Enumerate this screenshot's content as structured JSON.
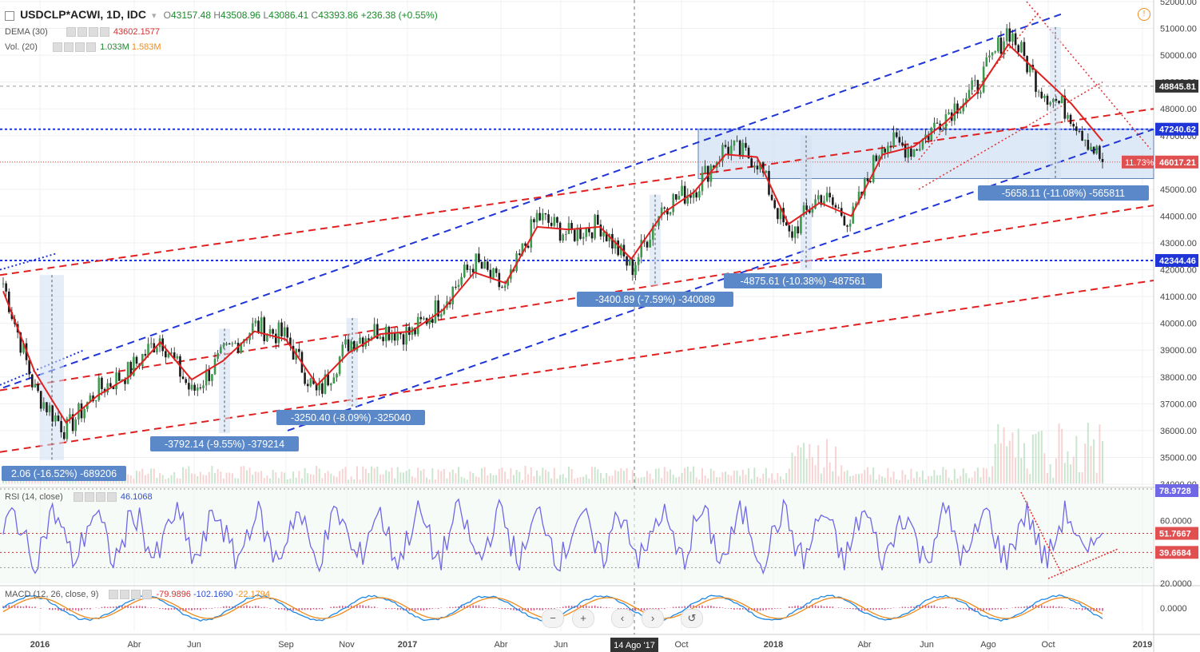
{
  "header": {
    "symbol": "USDCLP*ACWI, 1D, IDC",
    "ohlc": [
      {
        "k": "O",
        "v": "43157.48"
      },
      {
        "k": "H",
        "v": "43508.96"
      },
      {
        "k": "L",
        "v": "43086.41"
      },
      {
        "k": "C",
        "v": "43393.86"
      }
    ],
    "change": "+236.38 (+0.55%)",
    "dema_label": "DEMA (30)",
    "dema_value": "43602.1577",
    "vol_label": "Vol. (20)",
    "vol_value1": "1.033M",
    "vol_value2": "1.583M"
  },
  "rsi": {
    "label": "RSI (14, close)",
    "value": "46.1068"
  },
  "macd": {
    "label": "MACD (12, 26, close, 9)",
    "v1": "-79.9896",
    "v2": "-102.1690",
    "v3": "-22.1794"
  },
  "price_axis": {
    "ticks": [
      "52000.00",
      "51000.00",
      "50000.00",
      "49000.00",
      "48000.00",
      "47000.00",
      "46000.00",
      "45000.00",
      "44000.00",
      "43000.00",
      "42000.00",
      "41000.00",
      "40000.00",
      "39000.00",
      "38000.00",
      "37000.00",
      "36000.00",
      "35000.00",
      "34000.00"
    ],
    "crosshair_value": "48845.81",
    "level_high": "47240.62",
    "level_low": "42344.46",
    "last_price": "46017.21",
    "pct_tag": "11.73%"
  },
  "rsi_axis": {
    "ticks": [
      "80.0000",
      "60.0000",
      "40.0000",
      "20.0000"
    ],
    "tag1": "78.9728",
    "tag2": "51.7667",
    "tag3": "39.6684"
  },
  "macd_axis": {
    "ticks": [
      "0.0000"
    ]
  },
  "time_axis": {
    "ticks": [
      "2016",
      "Abr",
      "Jun",
      "Sep",
      "Nov",
      "2017",
      "Abr",
      "Jun",
      "Oct",
      "2018",
      "Abr",
      "Jun",
      "Ago",
      "Oct",
      "2019"
    ],
    "crosshair_label": "14 Ago '17"
  },
  "measurements": [
    "2.06 (-16.52%) -689206",
    "-3792.14 (-9.55%) -379214",
    "-3250.40 (-8.09%) -325040",
    "-3400.89 (-7.59%) -340089",
    "-4875.61 (-10.38%) -487561",
    "-5658.11 (-11.08%) -565811"
  ],
  "nav_buttons": [
    "−",
    "+",
    "‹",
    "›",
    "↺"
  ],
  "colors": {
    "up": "#3c9a4d",
    "down": "#1a1a1a",
    "dema": "#e02020",
    "rsi": "#6f67e6",
    "macd": "#1e88e5",
    "signal": "#ef8a1c",
    "blue_line": "#1f35d8",
    "red_line": "#e02020",
    "measure_fill": "#cfe0f3",
    "label_bg": "#5a88c8"
  },
  "chart_data": {
    "type": "line",
    "symbol": "USDCLP*ACWI",
    "timeframe": "1D",
    "x": [
      "2016-01",
      "2016-02",
      "2016-03",
      "2016-04",
      "2016-05",
      "2016-06",
      "2016-07",
      "2016-08",
      "2016-09",
      "2016-10",
      "2016-11",
      "2016-12",
      "2017-01",
      "2017-02",
      "2017-03",
      "2017-04",
      "2017-05",
      "2017-06",
      "2017-07",
      "2017-08",
      "2017-09",
      "2017-10",
      "2017-11",
      "2017-12",
      "2018-01",
      "2018-02",
      "2018-03",
      "2018-04",
      "2018-05",
      "2018-06",
      "2018-07",
      "2018-08",
      "2018-09",
      "2018-10",
      "2018-11",
      "2018-12"
    ],
    "series": [
      {
        "values": [
          41500,
          37500,
          36000,
          37500,
          38200,
          39500,
          37400,
          38800,
          39900,
          39500,
          37300,
          39300,
          39800,
          39600,
          40800,
          42300,
          41200,
          44000,
          43300,
          43700,
          42000,
          44400,
          45000,
          46600,
          46100,
          43200,
          44800,
          43800,
          46800,
          46500,
          47800,
          48800,
          51000,
          48800,
          47800,
          46000
        ]
      },
      {
        "values": [
          41200,
          38200,
          36300,
          37300,
          38000,
          39300,
          37900,
          38600,
          39700,
          39400,
          37700,
          38900,
          39600,
          39700,
          40500,
          41900,
          41500,
          43600,
          43500,
          43600,
          42400,
          44100,
          44900,
          46300,
          46200,
          43700,
          44500,
          44000,
          46300,
          46600,
          47500,
          48600,
          50400,
          49300,
          48200,
          46800
        ]
      }
    ],
    "ylim": [
      34000,
      52000
    ],
    "levels": [
      47240.62,
      42344.46
    ],
    "last": 46017.21,
    "rsi": {
      "ylim": [
        20,
        80
      ],
      "bands": [
        60,
        40
      ],
      "last": 46.1068
    },
    "macd": {
      "last": -79.9896,
      "signal": -102.169,
      "hist": -22.1794
    }
  }
}
